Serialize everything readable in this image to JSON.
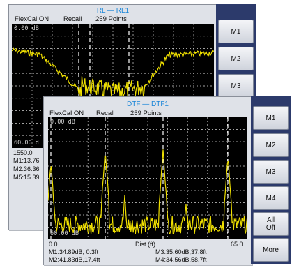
{
  "back": {
    "title": "RL — RL1",
    "flexcal": "FlexCal ON",
    "mode": "Recall",
    "points": "259 Points",
    "ref_top": "0.00 dB",
    "ref_bottom": "60.00 d",
    "axis_start": "1550.0",
    "markers": [
      "M1:13.76",
      "M2:36.36",
      "M5:15.39"
    ],
    "softkeys": [
      "M1",
      "M2",
      "M3"
    ]
  },
  "front": {
    "title": "DTF — DTF1",
    "flexcal": "FlexCal ON",
    "mode": "Recall",
    "points": "259 Points",
    "ref_top": "0.00 dB",
    "ref_bottom": "60.00 dB",
    "axis_start": "0.0",
    "axis_label": "Dist (ft)",
    "axis_end": "65.0",
    "markers": [
      "M1:34.89dB, 0.3ft",
      "M3:35.60dB,37.8ft",
      "M2:41.83dB,17.4ft",
      "M4:34.56dB,58.7ft"
    ],
    "softkeys": [
      "M1",
      "M2",
      "M3",
      "M4",
      "All\nOff",
      "More"
    ]
  },
  "colors": {
    "trace": "#f0e000",
    "title": "#1a86d8",
    "softkey_panel": "#2c3a6b"
  }
}
